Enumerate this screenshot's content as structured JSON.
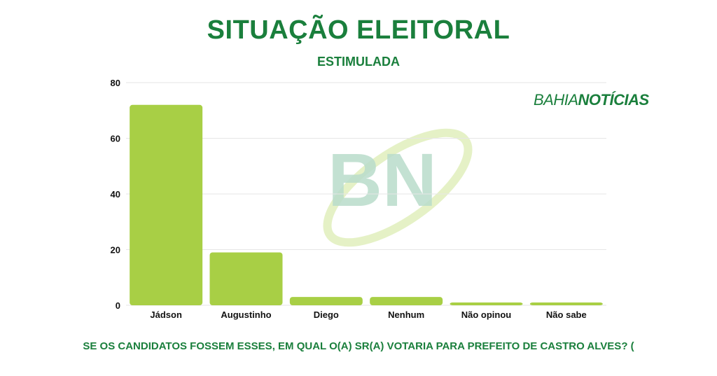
{
  "header": {
    "title": "SITUAÇÃO ELEITORAL",
    "subtitle": "ESTIMULADA"
  },
  "brand": {
    "logo_part1": "BAHIA",
    "logo_part2": "NOTÍCIAS",
    "watermark": "BN"
  },
  "question": "SE OS CANDIDATOS FOSSEM ESSES, EM QUAL O(A) SR(A) VOTARIA PARA PREFEITO DE CASTRO ALVES? (",
  "colors": {
    "bar": "#a8cf45",
    "text_green": "#1a7f3c",
    "grid": "#e6e6e6",
    "watermark_letters": "#b9dccb",
    "watermark_swoosh": "#e2efc0"
  },
  "chart_data": {
    "type": "bar",
    "title": "SITUAÇÃO ELEITORAL",
    "subtitle": "ESTIMULADA",
    "categories": [
      "Jádson",
      "Augustinho",
      "Diego",
      "Nenhum",
      "Não opinou",
      "Não sabe"
    ],
    "values": [
      72,
      19,
      3,
      3,
      1,
      1
    ],
    "ylim": [
      0,
      80
    ],
    "yticks": [
      0,
      20,
      40,
      60,
      80
    ],
    "grid": true,
    "legend": "none"
  }
}
